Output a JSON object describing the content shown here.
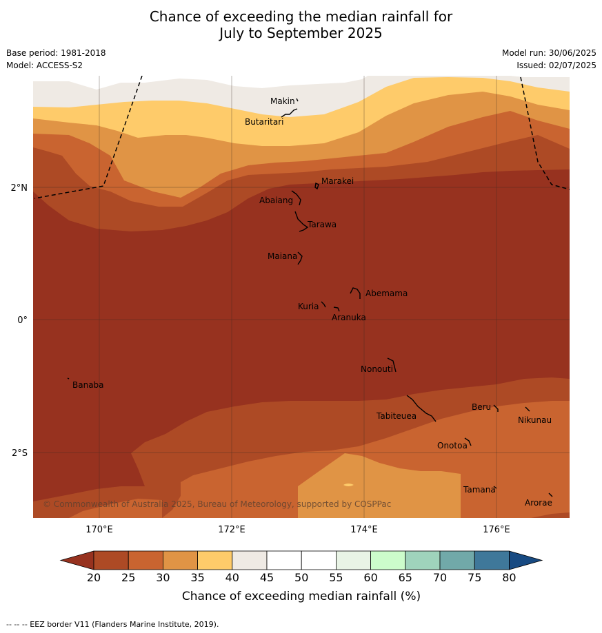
{
  "header": {
    "title_line1": "Chance of exceeding the median rainfall for",
    "title_line2": "July to September 2025",
    "base_period": "Base period: 1981-2018",
    "model": "Model: ACCESS-S2",
    "model_run": "Model run: 30/06/2025",
    "issued": "Issued: 02/07/2025"
  },
  "map": {
    "lon_ticks": [
      "170°E",
      "172°E",
      "174°E",
      "176°E"
    ],
    "lat_ticks": [
      "2°N",
      "0°",
      "2°S"
    ],
    "places": [
      {
        "name": "Makin"
      },
      {
        "name": "Butaritari"
      },
      {
        "name": "Marakei"
      },
      {
        "name": "Abaiang"
      },
      {
        "name": "Tarawa"
      },
      {
        "name": "Maiana"
      },
      {
        "name": "Abemama"
      },
      {
        "name": "Kuria"
      },
      {
        "name": "Aranuka"
      },
      {
        "name": "Nonouti"
      },
      {
        "name": "Banaba"
      },
      {
        "name": "Beru"
      },
      {
        "name": "Tabiteuea"
      },
      {
        "name": "Nikunau"
      },
      {
        "name": "Onotoa"
      },
      {
        "name": "Tamana"
      },
      {
        "name": "Arorae"
      }
    ],
    "copyright": "© Commonwealth of Australia 2025, Bureau of Meteorology, supported by COSPPac"
  },
  "colorbar": {
    "ticks": [
      "20",
      "25",
      "30",
      "35",
      "40",
      "45",
      "50",
      "55",
      "60",
      "65",
      "70",
      "75",
      "80"
    ],
    "colors": [
      "#ad4a25",
      "#c96430",
      "#e09445",
      "#fecb6a",
      "#efeae4",
      "#ffffff",
      "#ffffff",
      "#e9f4e6",
      "#ccfccb",
      "#9fd3bc",
      "#71a9a9",
      "#3f789a"
    ],
    "under_color": "#97321f",
    "over_color": "#174a82",
    "label": "Chance of exceeding median rainfall (%)"
  },
  "footer": {
    "note": "--  --  -- EEZ border V11 (Flanders Marine Institute, 2019)."
  }
}
